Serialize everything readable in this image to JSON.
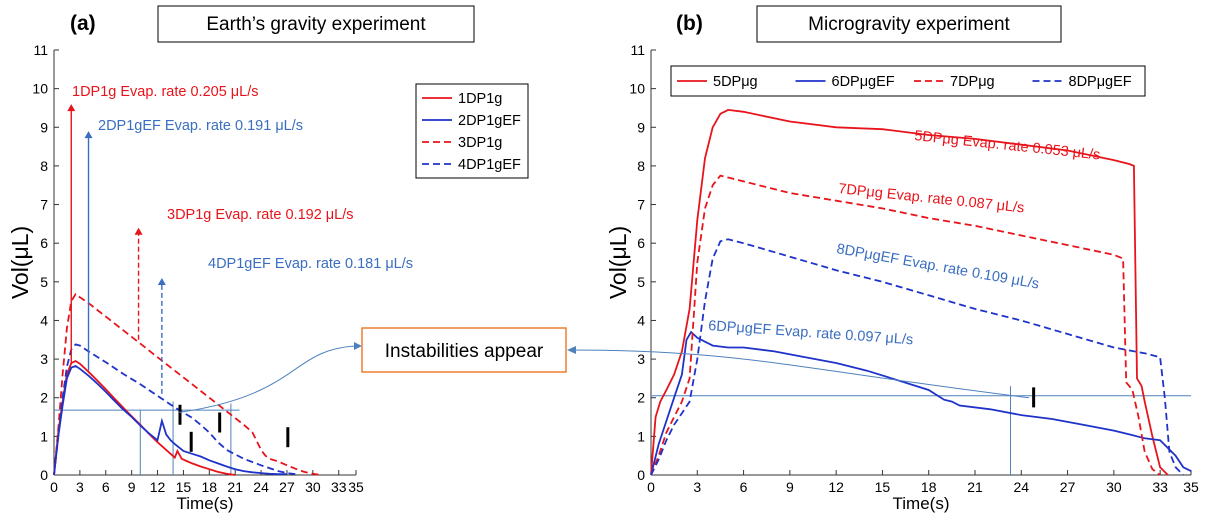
{
  "colors": {
    "red": "#e8141b",
    "blue": "#1f33c9",
    "ann_red": "#e8141b",
    "ann_blue": "#3a6ec0",
    "guide": "#4f81bd",
    "box_border": "#ed7d31"
  },
  "center_label": "Instabilities appear",
  "chart_data": [
    {
      "type": "line",
      "panel_label": "(a)",
      "title": "Earth’s gravity experiment",
      "xlabel": "Time(s)",
      "ylabel": "Vol(μL)",
      "xlim": [
        0,
        35
      ],
      "ylim": [
        0,
        11
      ],
      "xticks": [
        "0",
        "3",
        "6",
        "9",
        "12",
        "15",
        "18",
        "21",
        "24",
        "27",
        "30",
        "33",
        "35"
      ],
      "yticks": [
        "0",
        "1",
        "2",
        "3",
        "4",
        "5",
        "6",
        "7",
        "8",
        "9",
        "10",
        "11"
      ],
      "legend_position": "top-right",
      "series": [
        {
          "name": "1DP1g",
          "style": "solid",
          "color": "#e8141b",
          "x": [
            0,
            0.5,
            1,
            1.5,
            2,
            2.5,
            3,
            4,
            5,
            6,
            7,
            8,
            9,
            10,
            11,
            12,
            13,
            14,
            14.3,
            14.8,
            15.5,
            16,
            17,
            18,
            19,
            20,
            21
          ],
          "y": [
            0,
            1.1,
            1.9,
            2.6,
            2.9,
            2.95,
            2.88,
            2.67,
            2.45,
            2.22,
            1.98,
            1.75,
            1.52,
            1.3,
            1.07,
            0.85,
            0.65,
            0.45,
            0.62,
            0.42,
            0.35,
            0.3,
            0.22,
            0.15,
            0.08,
            0.03,
            0
          ]
        },
        {
          "name": "2DP1gEF",
          "style": "solid",
          "color": "#1f33c9",
          "x": [
            0,
            0.5,
            1,
            1.5,
            2,
            2.5,
            3,
            4,
            5,
            6,
            7,
            8,
            9,
            10,
            11,
            12,
            12.5,
            13,
            13.5,
            14,
            15,
            16,
            17,
            18,
            19,
            20,
            21,
            22,
            23,
            24,
            25,
            26,
            27
          ],
          "y": [
            0,
            1.0,
            1.8,
            2.5,
            2.78,
            2.82,
            2.75,
            2.57,
            2.37,
            2.15,
            1.92,
            1.7,
            1.5,
            1.28,
            1.08,
            0.9,
            1.4,
            1.05,
            0.9,
            0.8,
            0.62,
            0.55,
            0.48,
            0.38,
            0.3,
            0.22,
            0.15,
            0.1,
            0.07,
            0.05,
            0.03,
            0.02,
            0.02
          ]
        },
        {
          "name": "3DP1g",
          "style": "dashed",
          "color": "#e8141b",
          "x": [
            0,
            0.5,
            1,
            1.5,
            2,
            2.5,
            3,
            4,
            6,
            8,
            10,
            12,
            14,
            16,
            18,
            20,
            22,
            23,
            24,
            24.5,
            25,
            26,
            27,
            28,
            29,
            30,
            31
          ],
          "y": [
            0,
            1.2,
            2.6,
            3.8,
            4.5,
            4.68,
            4.6,
            4.45,
            4.1,
            3.75,
            3.4,
            3.05,
            2.7,
            2.35,
            2.0,
            1.65,
            1.3,
            1.1,
            0.65,
            0.5,
            0.42,
            0.35,
            0.25,
            0.16,
            0.08,
            0.03,
            0
          ]
        },
        {
          "name": "4DP1gEF",
          "style": "dashed",
          "color": "#1f33c9",
          "x": [
            0,
            0.5,
            1,
            1.5,
            2,
            2.5,
            3,
            4,
            6,
            8,
            10,
            12,
            14,
            16,
            17,
            18,
            19,
            20,
            22,
            24,
            26,
            27,
            28
          ],
          "y": [
            0,
            1.0,
            2.0,
            2.8,
            3.25,
            3.38,
            3.35,
            3.2,
            2.92,
            2.62,
            2.35,
            2.05,
            1.75,
            1.48,
            1.3,
            1.1,
            0.85,
            0.65,
            0.42,
            0.25,
            0.1,
            0.05,
            0.02
          ]
        }
      ],
      "annotations": [
        {
          "text": "1DP1g Evap. rate  0.205 μL/s",
          "color": "red",
          "arrow_x": 2,
          "arrow_from": 2.9,
          "arrow_to": 9.6,
          "dashed": false
        },
        {
          "text": "2DP1gEF Evap. rate  0.191 μL/s",
          "color": "blue",
          "arrow_x": 4,
          "arrow_from": 2.7,
          "arrow_to": 8.9,
          "dashed": false
        },
        {
          "text": "3DP1g Evap. rate  0.192 μL/s",
          "color": "red",
          "arrow_x": 9.8,
          "arrow_from": 3.5,
          "arrow_to": 6.4,
          "dashed": true
        },
        {
          "text": "4DP1gEF Evap. rate  0.181 μL/s",
          "color": "blue",
          "arrow_x": 12.5,
          "arrow_from": 2.1,
          "arrow_to": 5.1,
          "dashed": true
        }
      ],
      "guides": {
        "hline": 1.68,
        "vlines": [
          [
            10,
            1.68
          ],
          [
            13.8,
            1.9
          ],
          [
            20.5,
            1.85
          ]
        ]
      },
      "markers": [
        [
          14.6,
          1.3
        ],
        [
          15.9,
          0.6
        ],
        [
          19.2,
          1.1
        ],
        [
          27.1,
          0.72
        ]
      ]
    },
    {
      "type": "line",
      "panel_label": "(b)",
      "title": "Microgravity experiment",
      "xlabel": "Time(s)",
      "ylabel": "Vol(μL)",
      "xlim": [
        0,
        35
      ],
      "ylim": [
        0,
        11
      ],
      "xticks": [
        "0",
        "3",
        "6",
        "9",
        "12",
        "15",
        "18",
        "21",
        "24",
        "27",
        "30",
        "33",
        "35"
      ],
      "yticks": [
        "0",
        "1",
        "2",
        "3",
        "4",
        "5",
        "6",
        "7",
        "8",
        "9",
        "10",
        "11"
      ],
      "legend_position": "top",
      "series": [
        {
          "name": "5DPμg",
          "style": "solid",
          "color": "#e8141b",
          "x": [
            0,
            0.3,
            0.6,
            1,
            1.5,
            2,
            2.5,
            3,
            3.5,
            4,
            4.5,
            5,
            6,
            9,
            12,
            15,
            18,
            21,
            24,
            27,
            30,
            31,
            31.3,
            31.5,
            31.8,
            32,
            32.5,
            33,
            33.5
          ],
          "y": [
            0,
            1.5,
            1.9,
            2.2,
            2.6,
            3.2,
            4.3,
            6.6,
            8.2,
            9.0,
            9.35,
            9.45,
            9.4,
            9.15,
            9.0,
            8.95,
            8.8,
            8.7,
            8.55,
            8.4,
            8.15,
            8.05,
            8.0,
            2.5,
            2.3,
            1.9,
            1.0,
            0.2,
            0
          ]
        },
        {
          "name": "6DPμgEF",
          "style": "solid",
          "color": "#1f33c9",
          "x": [
            0,
            0.5,
            1,
            1.5,
            2,
            2.3,
            2.6,
            3,
            4,
            5,
            6,
            8,
            10,
            12,
            14,
            16,
            18,
            19,
            19.5,
            20,
            22,
            24,
            26,
            28,
            30,
            31,
            32,
            33,
            34,
            34.5,
            35
          ],
          "y": [
            0,
            0.8,
            1.4,
            2.0,
            2.6,
            3.5,
            3.7,
            3.55,
            3.35,
            3.3,
            3.3,
            3.2,
            3.05,
            2.9,
            2.7,
            2.45,
            2.2,
            1.95,
            1.9,
            1.8,
            1.7,
            1.55,
            1.45,
            1.3,
            1.15,
            1.05,
            0.95,
            0.9,
            0.5,
            0.2,
            0.1
          ]
        },
        {
          "name": "7DPμg",
          "style": "dashed",
          "color": "#e8141b",
          "x": [
            0,
            0.5,
            1,
            1.5,
            2,
            2.5,
            3,
            3.5,
            4,
            4.5,
            5,
            6,
            9,
            12,
            15,
            18,
            21,
            24,
            27,
            30,
            30.6,
            30.8,
            31.2,
            31.6,
            32,
            32.5,
            33
          ],
          "y": [
            0,
            0.5,
            1.1,
            1.5,
            1.9,
            2.5,
            5.5,
            6.9,
            7.5,
            7.75,
            7.7,
            7.6,
            7.3,
            7.1,
            6.9,
            6.65,
            6.45,
            6.2,
            5.95,
            5.7,
            5.6,
            2.4,
            2.2,
            1.5,
            0.6,
            0.15,
            0
          ]
        },
        {
          "name": "8DPμgEF",
          "style": "dashed",
          "color": "#1f33c9",
          "x": [
            0,
            0.5,
            1,
            1.5,
            2,
            2.5,
            3,
            3.5,
            4,
            4.5,
            5,
            6,
            9,
            12,
            15,
            18,
            21,
            24,
            27,
            30,
            32,
            33,
            33.3,
            33.6,
            34,
            34.5
          ],
          "y": [
            0,
            0.4,
            0.9,
            1.3,
            1.6,
            1.9,
            3.0,
            4.5,
            5.6,
            6.05,
            6.1,
            6.0,
            5.65,
            5.3,
            5.0,
            4.65,
            4.3,
            4.0,
            3.65,
            3.3,
            3.15,
            3.05,
            2.0,
            0.6,
            0.2,
            0
          ]
        }
      ],
      "annotations": [
        {
          "text": "5DPμg Evap. rate  0.053 μL/s",
          "color": "red"
        },
        {
          "text": "7DPμg Evap. rate  0.087 μL/s",
          "color": "red"
        },
        {
          "text": "8DPμgEF Evap. rate  0.109 μL/s",
          "color": "blue"
        },
        {
          "text": "6DPμgEF Evap. rate  0.097 μL/s",
          "color": "blue"
        }
      ],
      "guides": {
        "hline": 2.05,
        "vlines": [
          [
            23.3,
            2.3
          ]
        ]
      },
      "markers": [
        [
          24.8,
          1.75
        ]
      ]
    }
  ]
}
